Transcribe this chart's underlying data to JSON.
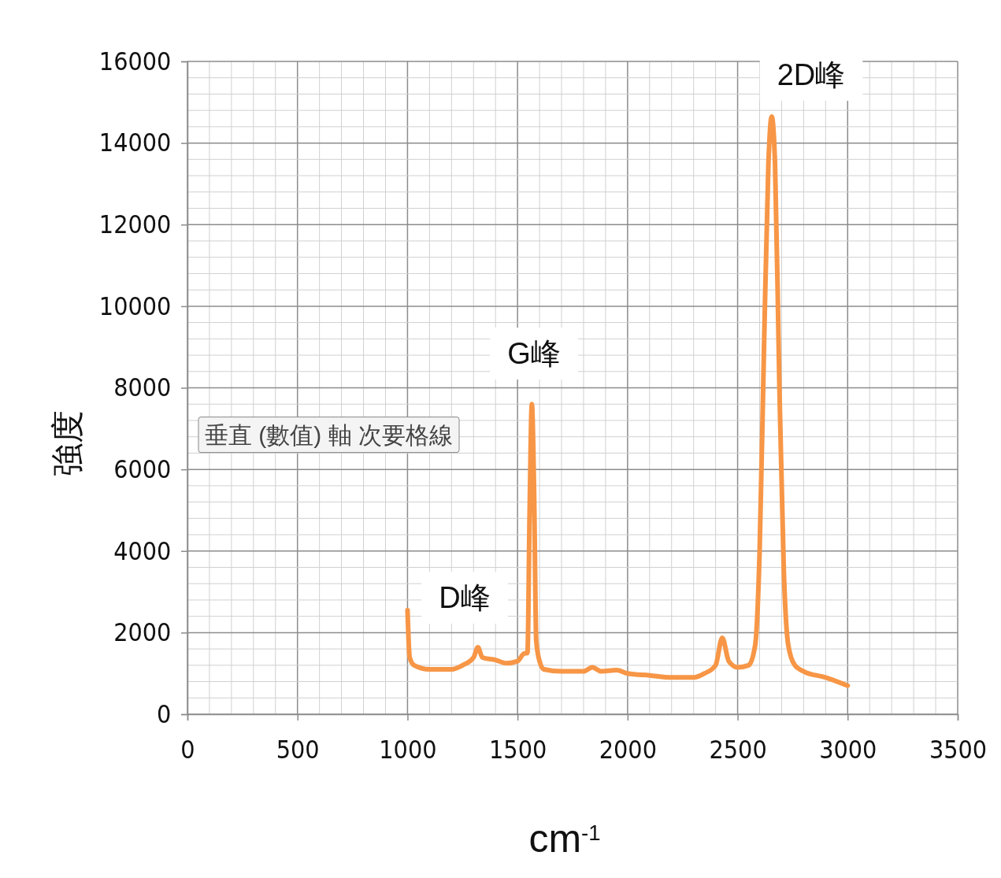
{
  "chart_data": {
    "type": "line",
    "xlabel": "cm$^{-1}$",
    "ylabel": "強度",
    "xlim": [
      0,
      3500
    ],
    "xticks": [
      0,
      500,
      1000,
      1500,
      2000,
      2500,
      3000,
      3500
    ],
    "ylim": [
      0,
      16000
    ],
    "yticks": [
      0,
      2000,
      4000,
      6000,
      8000,
      10000,
      12000,
      14000,
      16000
    ],
    "grid": true,
    "annotations": [
      "2D峰",
      "G峰",
      "D峰",
      "垂直 (數值) 軸 次要格線"
    ],
    "series": [
      {
        "color": "#f79646",
        "x": [
          1000,
          1010,
          1030,
          1100,
          1200,
          1250,
          1300,
          1320,
          1340,
          1400,
          1450,
          1500,
          1530,
          1545,
          1555,
          1565,
          1575,
          1585,
          1600,
          1620,
          1700,
          1800,
          1840,
          1880,
          1950,
          2000,
          2100,
          2200,
          2300,
          2350,
          2400,
          2430,
          2460,
          2500,
          2550,
          2580,
          2600,
          2620,
          2640,
          2655,
          2670,
          2690,
          2710,
          2730,
          2760,
          2800,
          2900,
          3000
        ],
        "values": [
          2550,
          1390,
          1200,
          1100,
          1100,
          1200,
          1390,
          1640,
          1390,
          1330,
          1250,
          1300,
          1490,
          1500,
          5000,
          7600,
          5500,
          1800,
          1300,
          1100,
          1050,
          1050,
          1150,
          1050,
          1080,
          1000,
          950,
          900,
          900,
          1000,
          1200,
          1870,
          1300,
          1150,
          1200,
          1700,
          4000,
          9000,
          13500,
          14650,
          13500,
          8000,
          3500,
          1700,
          1200,
          1050,
          900,
          700
        ]
      }
    ]
  }
}
